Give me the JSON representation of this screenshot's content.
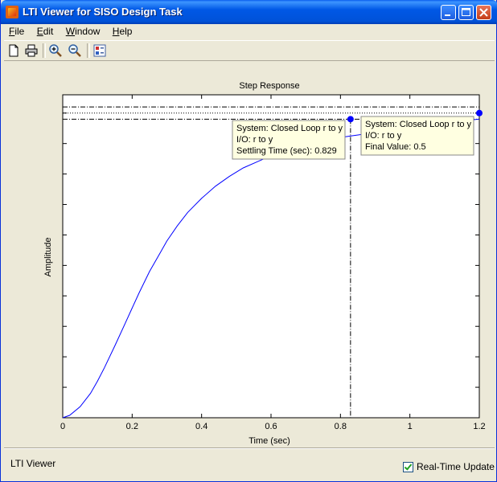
{
  "window": {
    "title": "LTI Viewer for SISO Design Task"
  },
  "menu": {
    "file": "File",
    "edit": "Edit",
    "window": "Window",
    "help": "Help",
    "file_u": "F",
    "file_rest": "ile",
    "edit_u": "E",
    "edit_rest": "dit",
    "window_u": "W",
    "window_rest": "indow",
    "help_u": "H",
    "help_rest": "elp"
  },
  "toolbar": {
    "icons": [
      "new-document-icon",
      "print-icon",
      "zoom-in-icon",
      "zoom-out-icon",
      "plot-configuration-icon"
    ]
  },
  "chart_data": {
    "type": "line",
    "title": "Step Response",
    "xlabel": "Time (sec)",
    "ylabel": "Amplitude",
    "xlim": [
      0,
      1.2
    ],
    "xticks": [
      "0",
      "0.2",
      "0.4",
      "0.6",
      "0.8",
      "1",
      "1.2"
    ],
    "xtick_values": [
      0,
      0.2,
      0.4,
      0.6,
      0.8,
      1.0,
      1.2
    ],
    "ylim": [
      0,
      0.53
    ],
    "grid": false,
    "series": [
      {
        "x": [
          0,
          0.02,
          0.05,
          0.08,
          0.1,
          0.12,
          0.15,
          0.18,
          0.2,
          0.22,
          0.25,
          0.28,
          0.3,
          0.33,
          0.36,
          0.4,
          0.44,
          0.48,
          0.52,
          0.56,
          0.6,
          0.65,
          0.7,
          0.75,
          0.8,
          0.83,
          0.9,
          1.0,
          1.1,
          1.2
        ],
        "y": [
          0.0,
          0.004,
          0.018,
          0.04,
          0.06,
          0.082,
          0.118,
          0.155,
          0.18,
          0.205,
          0.24,
          0.27,
          0.29,
          0.315,
          0.337,
          0.36,
          0.38,
          0.396,
          0.41,
          0.42,
          0.43,
          0.44,
          0.448,
          0.455,
          0.46,
          0.4625,
          0.468,
          0.476,
          0.484,
          0.49
        ]
      }
    ],
    "reference_lines": {
      "final_value": 0.5,
      "settling_time": 0.829,
      "upper_band": 0.51,
      "lower_band": 0.49
    },
    "annotations": [
      {
        "lines": [
          "System: Closed Loop r to y",
          "I/O: r to y",
          "Settling Time (sec): 0.829"
        ],
        "x": 0.829,
        "y": 0.49
      },
      {
        "lines": [
          "System: Closed Loop r to y",
          "I/O: r to y",
          "Final Value: 0.5"
        ],
        "x": 1.2,
        "y": 0.5
      }
    ]
  },
  "status": {
    "text": "LTI Viewer",
    "realtime_label": "Real-Time Update"
  }
}
